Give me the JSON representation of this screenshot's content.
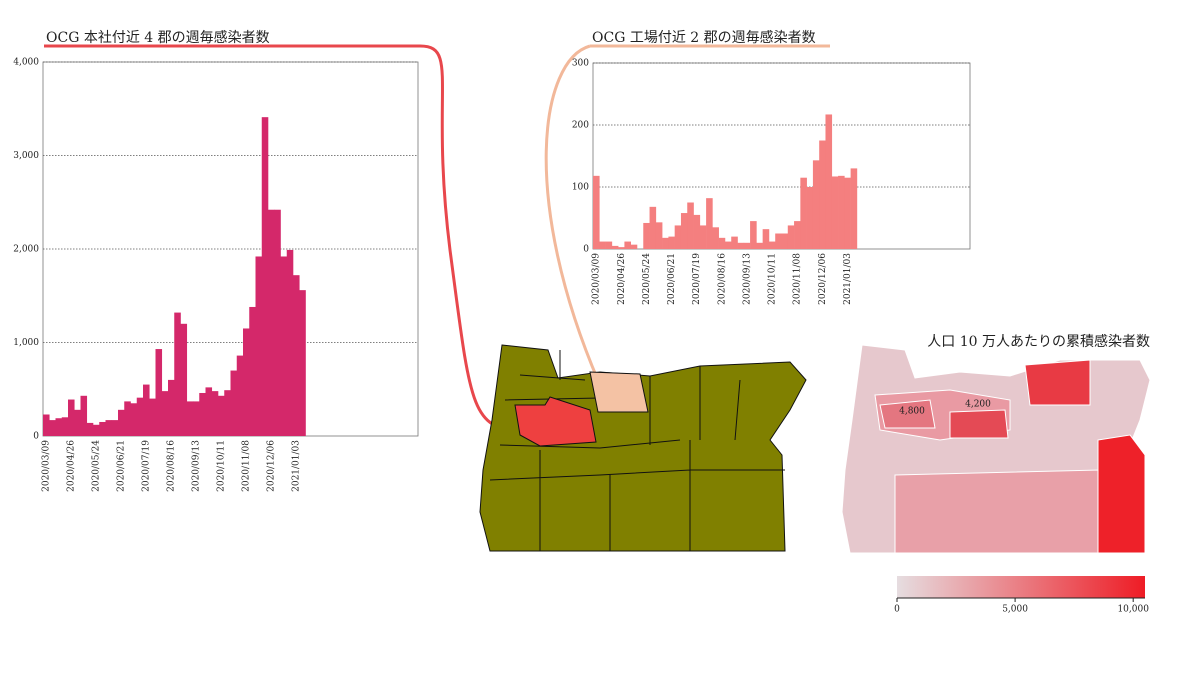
{
  "chart_data": [
    {
      "type": "bar",
      "title": "OCG 本社付近 4 郡の週毎感染者数",
      "color": "#d4286a",
      "categories": [
        "2020/03/09",
        null,
        null,
        null,
        "2020/04/26",
        null,
        null,
        null,
        "2020/05/24",
        null,
        null,
        null,
        "2020/06/21",
        null,
        null,
        null,
        "2020/07/19",
        null,
        null,
        null,
        "2020/08/16",
        null,
        null,
        null,
        "2020/09/13",
        null,
        null,
        null,
        "2020/10/11",
        null,
        null,
        null,
        "2020/11/08",
        null,
        null,
        null,
        "2020/12/06",
        null,
        null,
        null,
        "2021/01/03",
        null
      ],
      "values": [
        230,
        170,
        190,
        200,
        390,
        280,
        430,
        140,
        120,
        150,
        170,
        170,
        280,
        370,
        350,
        410,
        550,
        400,
        930,
        480,
        600,
        1320,
        1200,
        370,
        370,
        460,
        520,
        480,
        430,
        490,
        700,
        860,
        1150,
        1380,
        1920,
        3410,
        2420,
        2420,
        1920,
        1990,
        1720,
        1560
      ],
      "ylim": [
        0,
        4000
      ],
      "yticks": [
        0,
        {
          "value": 1000,
          "label": "1,000"
        },
        {
          "value": 2000,
          "label": "2,000"
        },
        {
          "value": 3000,
          "label": "3,000"
        },
        {
          "value": 4000,
          "label": "4,000"
        }
      ],
      "grid": true
    },
    {
      "type": "bar",
      "title": "OCG 工場付近 2 郡の週毎感染者数",
      "color": "#f47f7f",
      "categories": [
        "2020/03/09",
        null,
        null,
        null,
        "2020/04/26",
        null,
        null,
        null,
        "2020/05/24",
        null,
        null,
        null,
        "2020/06/21",
        null,
        null,
        null,
        "2020/07/19",
        null,
        null,
        null,
        "2020/08/16",
        null,
        null,
        null,
        "2020/09/13",
        null,
        null,
        null,
        "2020/10/11",
        null,
        null,
        null,
        "2020/11/08",
        null,
        null,
        null,
        "2020/12/06",
        null,
        null,
        null,
        "2021/01/03",
        null
      ],
      "values": [
        118,
        12,
        12,
        5,
        3,
        12,
        7,
        0,
        42,
        68,
        43,
        18,
        20,
        38,
        58,
        75,
        55,
        38,
        82,
        35,
        18,
        12,
        20,
        10,
        10,
        45,
        10,
        32,
        12,
        25,
        25,
        38,
        45,
        115,
        100,
        143,
        175,
        217,
        117,
        118,
        115,
        130
      ],
      "ylim": [
        0,
        300
      ],
      "yticks": [
        0,
        100,
        200,
        300
      ],
      "grid": true
    },
    {
      "type": "choropleth",
      "title": "人口 10 万人あたりの累積感染者数",
      "annotations": [
        {
          "value": 4800,
          "label": "4,800"
        },
        {
          "value": 4200,
          "label": "4,200"
        }
      ],
      "colors": [
        "#e6dde0",
        "#ee1c25"
      ],
      "colorbar_lim": [
        0,
        10500
      ],
      "colorbar_ticks": [
        0,
        {
          "value": 5000,
          "label": "5,000"
        },
        {
          "value": 10000,
          "label": "10,000"
        }
      ]
    }
  ]
}
